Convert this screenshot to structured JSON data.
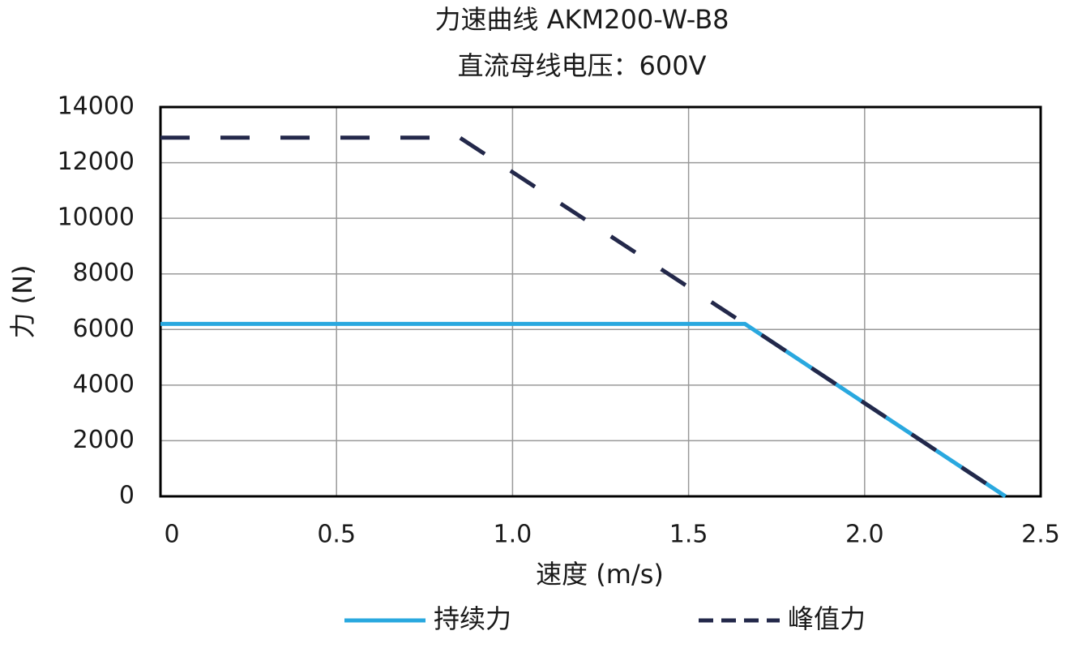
{
  "chart_data": {
    "type": "line",
    "title": "力速曲线 AKM200-W-B8",
    "subtitle": "直流母线电压：600V",
    "x_label": "速度 (m/s)",
    "y_label": "力 (N)",
    "xlim": [
      0,
      2.5
    ],
    "xticks": [
      0,
      0.5,
      {
        "value": 1,
        "label": "1.0"
      },
      1.5,
      {
        "value": 2,
        "label": "2.0"
      },
      2.5
    ],
    "ylim": [
      0,
      14000
    ],
    "yticks": [
      0,
      2000,
      4000,
      6000,
      8000,
      10000,
      12000,
      14000
    ],
    "grid": true,
    "legend": "bottom",
    "series": [
      {
        "name": "持续力",
        "color": "#29a8df",
        "dash": false,
        "x": [
          0,
          1.66,
          2.4
        ],
        "values": [
          6200,
          6200,
          0
        ]
      },
      {
        "name": "峰值力",
        "color": "#23284a",
        "dash": true,
        "x": [
          0,
          0.85,
          1.66,
          2.4
        ],
        "values": [
          12900,
          12900,
          6200,
          0
        ]
      }
    ]
  }
}
